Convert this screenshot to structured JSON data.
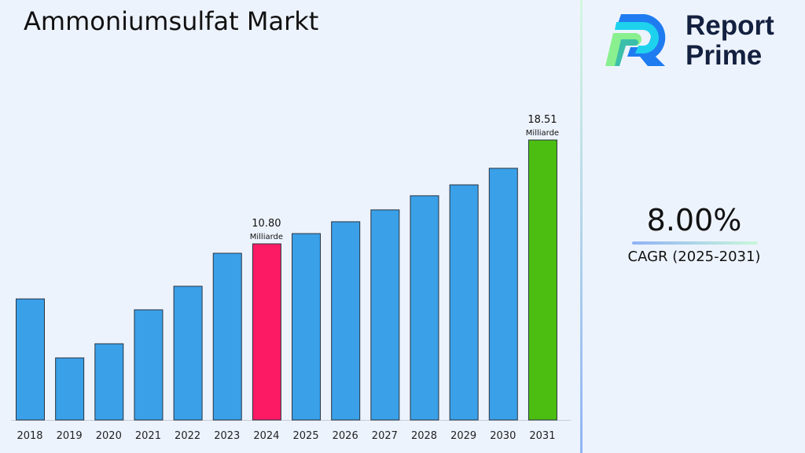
{
  "title": "Ammoniumsulfat Markt",
  "logo": {
    "line1": "Report",
    "line2": "Prime"
  },
  "cagr": {
    "value": "8.00%",
    "label": "CAGR (2025-2031)"
  },
  "chart_data": {
    "type": "bar",
    "title": "Ammoniumsulfat Markt",
    "categories": [
      "2018",
      "2019",
      "2020",
      "2021",
      "2022",
      "2023",
      "2024",
      "2025",
      "2026",
      "2027",
      "2028",
      "2029",
      "2030",
      "2031"
    ],
    "values": [
      6.71,
      2.33,
      3.38,
      5.9,
      7.65,
      10.1,
      10.8,
      11.56,
      12.44,
      13.32,
      14.37,
      15.18,
      16.41,
      18.51
    ],
    "colors": [
      "#3aa0e8",
      "#3aa0e8",
      "#3aa0e8",
      "#3aa0e8",
      "#3aa0e8",
      "#3aa0e8",
      "#fc1a64",
      "#3aa0e8",
      "#3aa0e8",
      "#3aa0e8",
      "#3aa0e8",
      "#3aa0e8",
      "#3aa0e8",
      "#4cbe12"
    ],
    "annotations": [
      {
        "category": "2024",
        "value": "10.80",
        "unit": "Milliarde"
      },
      {
        "category": "2031",
        "value": "18.51",
        "unit": "Milliarde"
      }
    ],
    "ylim": [
      -2.28,
      19.8
    ],
    "grid": false,
    "xlabel": "",
    "ylabel": ""
  }
}
